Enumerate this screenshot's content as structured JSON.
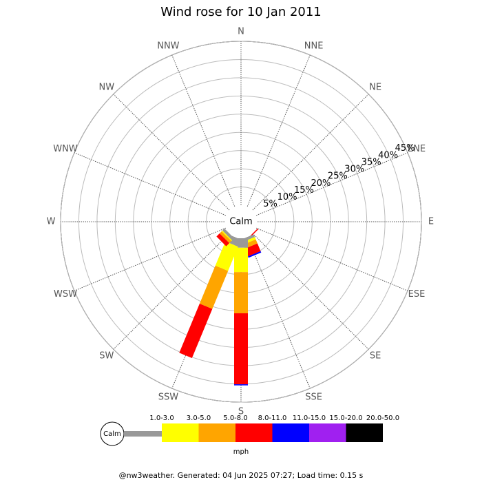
{
  "chart_data": {
    "type": "windrose",
    "title": "Wind rose for 10 Jan 2011",
    "calm_label": "Calm",
    "categories": [
      "N",
      "NNE",
      "NE",
      "ENE",
      "E",
      "ESE",
      "SE",
      "SSE",
      "S",
      "SSW",
      "SW",
      "WSW",
      "W",
      "WNW",
      "NW",
      "NNW"
    ],
    "rlim": [
      0,
      45
    ],
    "rticks": [
      {
        "value": 5,
        "label": "5%"
      },
      {
        "value": 10,
        "label": "10%"
      },
      {
        "value": 15,
        "label": "15%"
      },
      {
        "value": 20,
        "label": "20%"
      },
      {
        "value": 25,
        "label": "25%"
      },
      {
        "value": 30,
        "label": "30%"
      },
      {
        "value": 35,
        "label": "35%"
      },
      {
        "value": 40,
        "label": "40%"
      },
      {
        "value": 45,
        "label": "45%"
      }
    ],
    "series": [
      {
        "name": "1.0-3.0",
        "color": "#999999",
        "values": [
          0,
          0,
          0,
          0,
          0,
          0,
          0,
          0.8,
          2.6,
          2.1,
          0.8,
          0,
          0,
          0,
          0,
          0
        ]
      },
      {
        "name": "3.0-5.0",
        "color": "#ffff00",
        "values": [
          0,
          0,
          0,
          0,
          0,
          0,
          0,
          0.7,
          6.7,
          7.2,
          0.3,
          0,
          0,
          0,
          0,
          0
        ]
      },
      {
        "name": "5.0-8.0",
        "color": "#ffa500",
        "values": [
          0,
          0,
          0,
          0,
          0,
          0,
          0,
          1.2,
          11.3,
          11.3,
          0.8,
          0,
          0,
          0,
          0,
          0
        ]
      },
      {
        "name": "8.0-11.0",
        "color": "#ff0000",
        "values": [
          0,
          0,
          0,
          0,
          0,
          0,
          0.3,
          2.3,
          19.5,
          14.6,
          1.2,
          0,
          0,
          0,
          0,
          0
        ]
      },
      {
        "name": "11.0-15.0",
        "color": "#0000ff",
        "values": [
          0,
          0,
          0,
          0,
          0,
          0,
          0,
          0.4,
          0.3,
          0,
          0,
          0,
          0,
          0,
          0,
          0
        ]
      },
      {
        "name": "15.0-20.0",
        "color": "#a020f0",
        "values": [
          0,
          0,
          0,
          0,
          0,
          0,
          0,
          0,
          0,
          0,
          0,
          0,
          0,
          0,
          0,
          0
        ]
      },
      {
        "name": "20.0-50.0",
        "color": "#000000",
        "values": [
          0,
          0,
          0,
          0,
          0,
          0,
          0,
          0,
          0,
          0,
          0,
          0,
          0,
          0,
          0,
          0
        ]
      }
    ],
    "unit_label": "mph",
    "footer": "@nw3weather. Generated: 04 Jun 2025 07:27; Load time: 0.15 s"
  }
}
